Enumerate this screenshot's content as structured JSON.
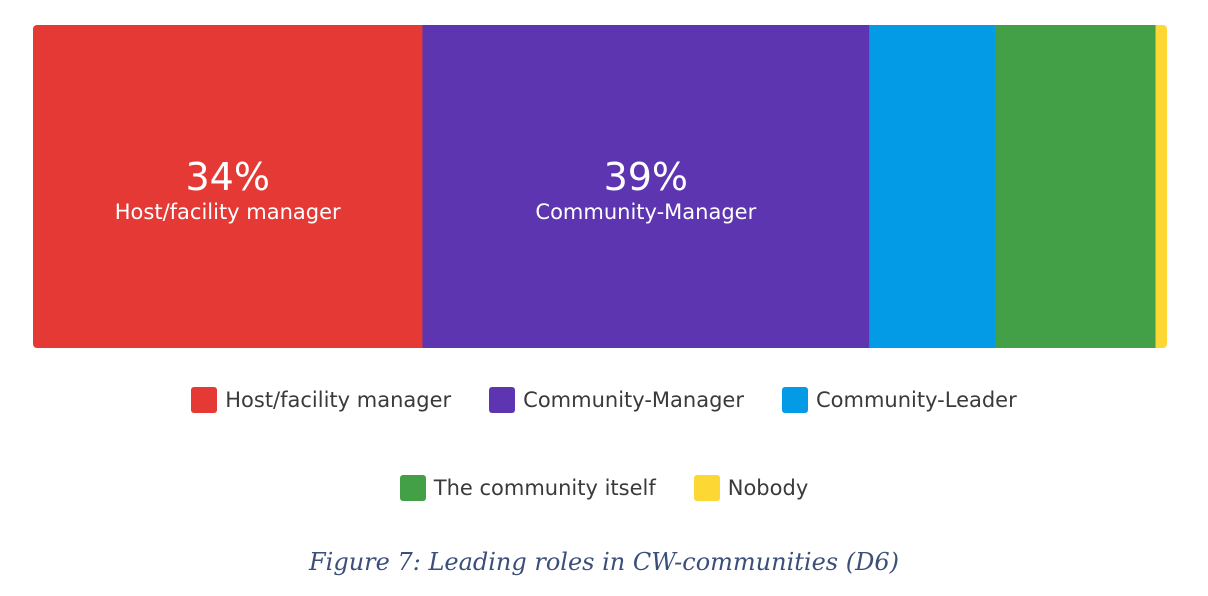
{
  "chart_data": {
    "type": "bar",
    "orientation": "horizontal",
    "stacked": true,
    "unit": "%",
    "categories": [
      "Host/facility manager",
      "Community-Manager",
      "Community-Leader",
      "The community itself",
      "Nobody"
    ],
    "values": [
      34,
      39,
      11,
      14,
      1
    ],
    "value_labels": [
      "34%",
      "39%",
      "",
      "",
      ""
    ],
    "colors": [
      "#e53935",
      "#5e35b1",
      "#039be5",
      "#43a047",
      "#fdd835"
    ],
    "legend": {
      "position": "bottom",
      "rows": [
        [
          "Host/facility manager",
          "Community-Manager",
          "Community-Leader"
        ],
        [
          "The community itself",
          "Nobody"
        ]
      ]
    },
    "grid": false,
    "title": "",
    "xlabel": "",
    "ylabel": ""
  },
  "caption": "Figure 7: Leading roles in CW-communities (D6)"
}
